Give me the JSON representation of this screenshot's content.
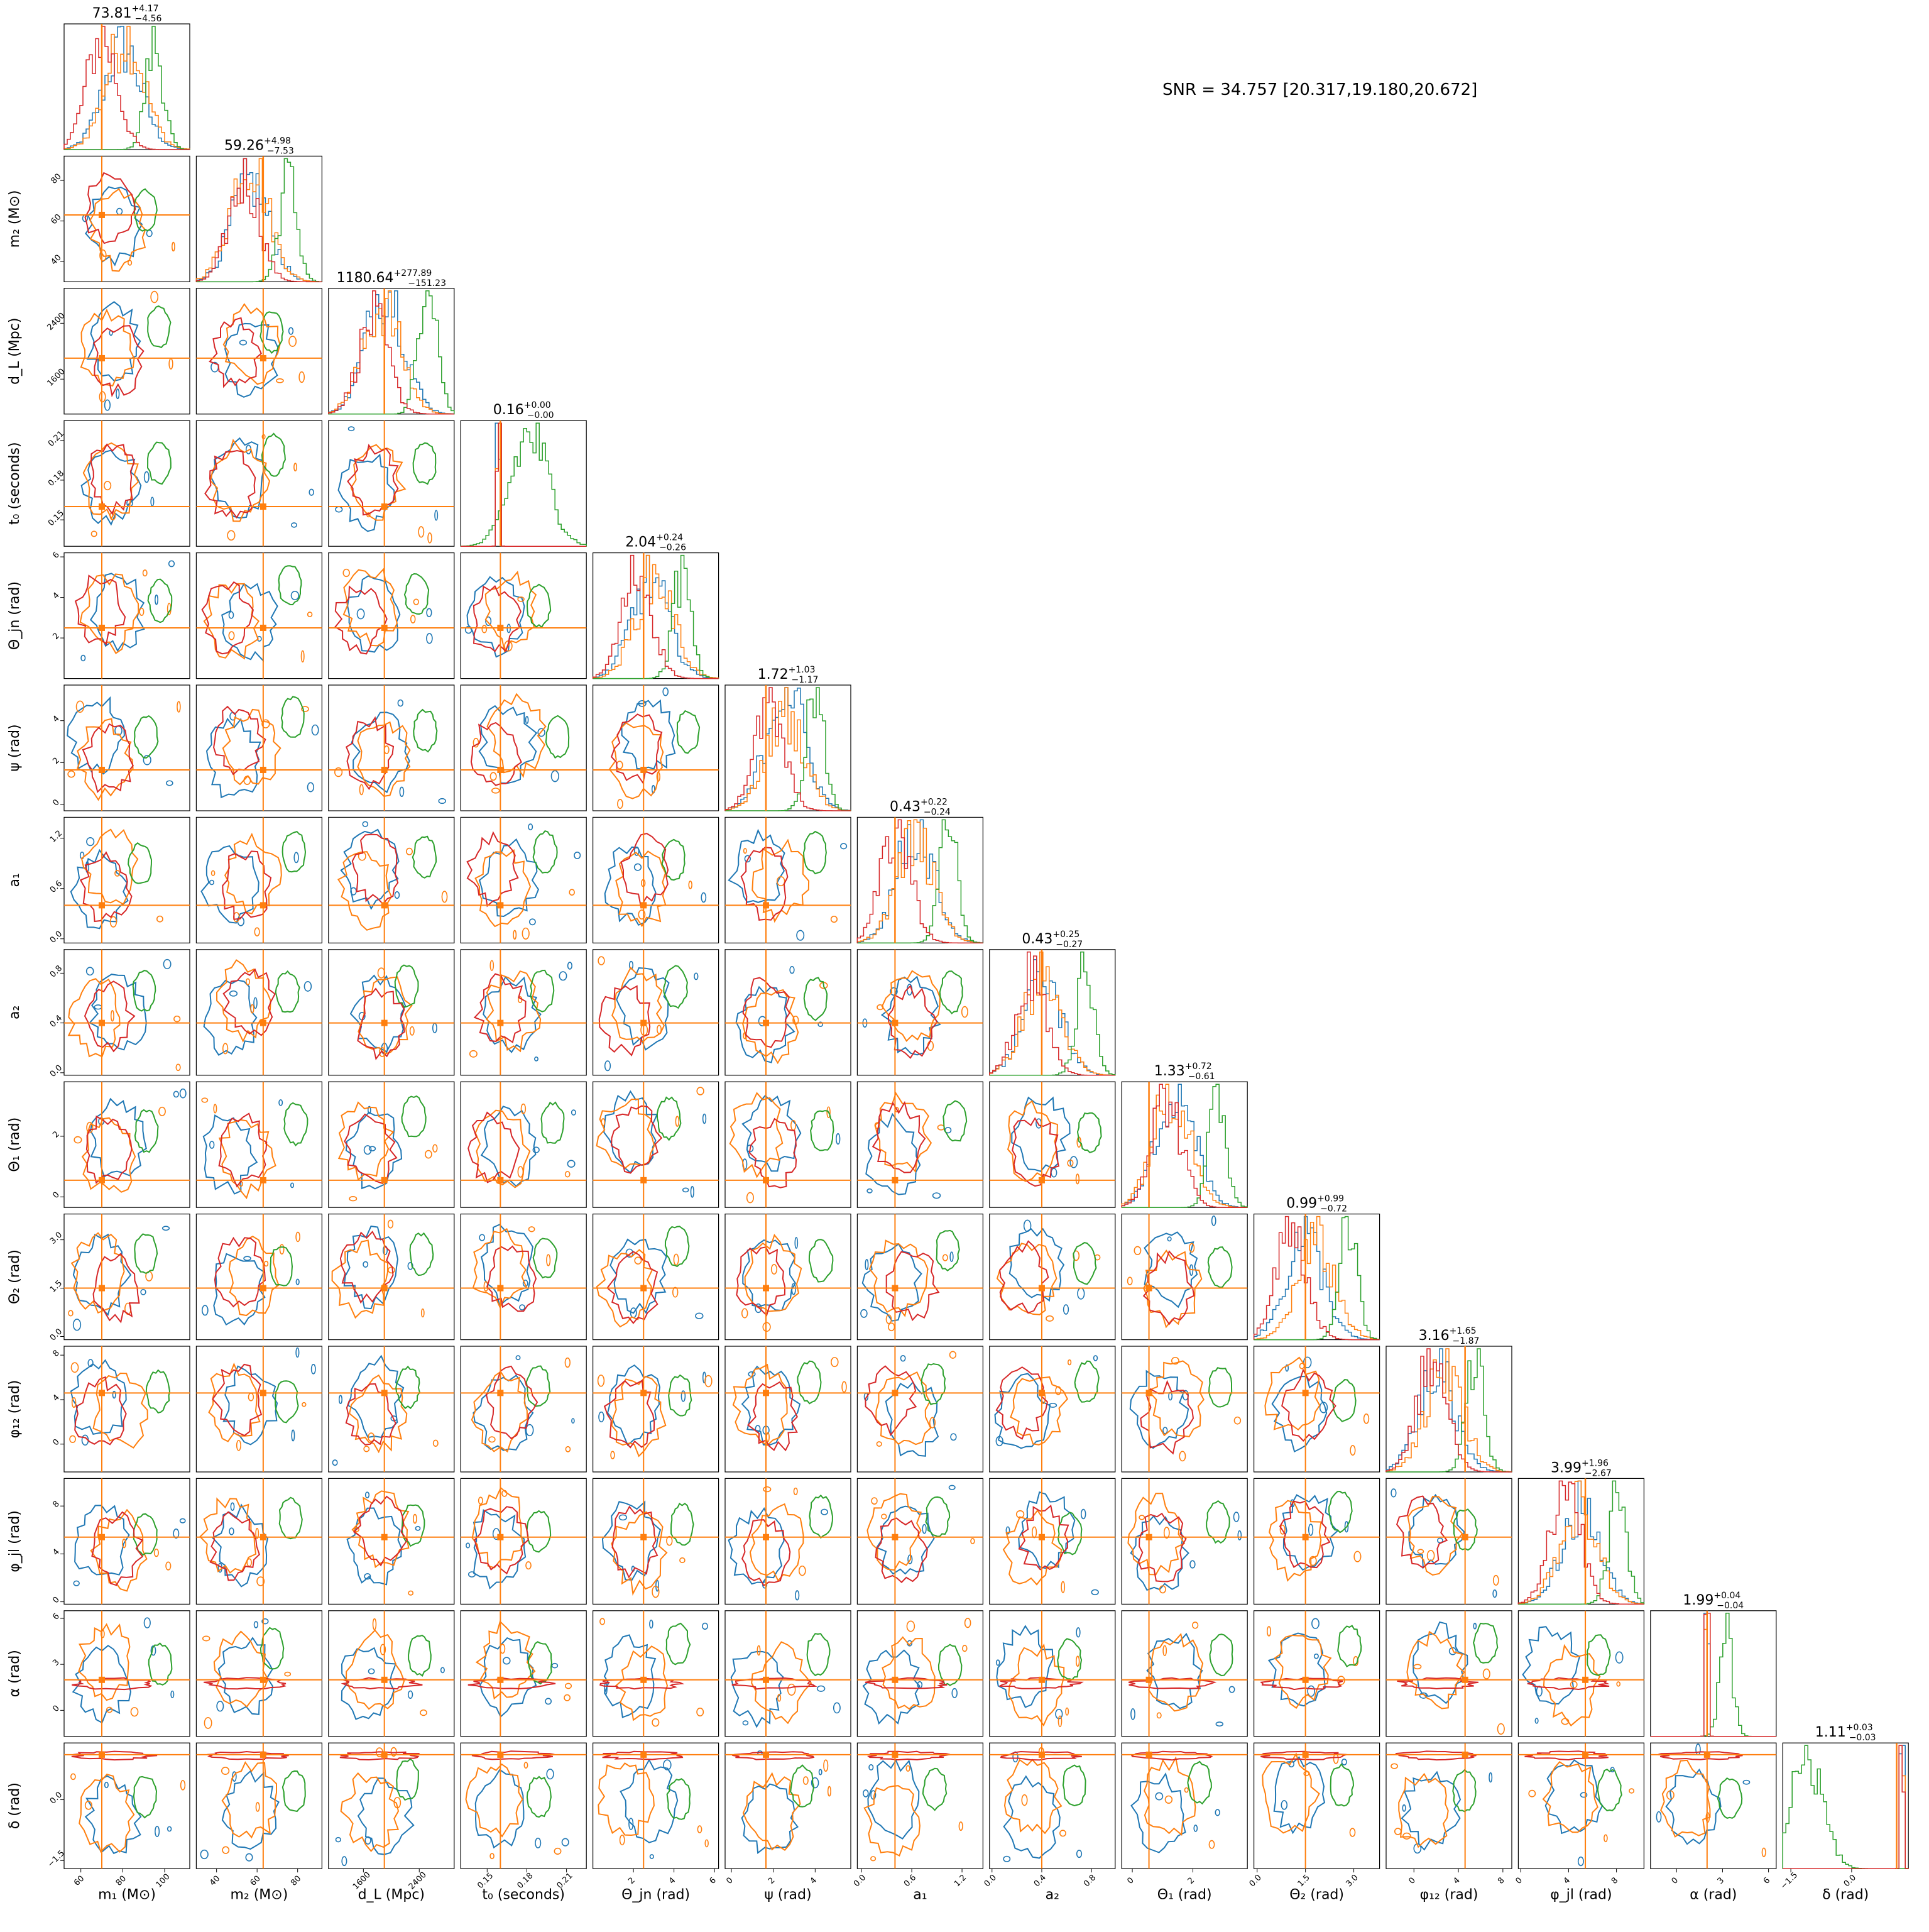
{
  "figure": {
    "snr_label": "SNR = 34.757 [20.317,19.180,20.672]"
  },
  "colors": {
    "blue": "#1f77b4",
    "orange": "#ff7f0e",
    "green": "#2ca02c",
    "red": "#d62728",
    "truth": "#ff7f0e"
  },
  "chart_data": {
    "type": "corner",
    "series": [
      {
        "name": "",
        "color": "#1f77b4"
      },
      {
        "name": "",
        "color": "#ff7f0e"
      },
      {
        "name": "",
        "color": "#2ca02c"
      },
      {
        "name": "",
        "color": "#d62728"
      }
    ],
    "parameters": [
      {
        "key": "m1",
        "label": "m₁ (M⊙)",
        "title": "73.81 +4.17 −4.56",
        "median": 73.81,
        "plus": 4.17,
        "minus": 4.56,
        "range": [
          52,
          112
        ],
        "ticks": [
          60,
          80,
          100
        ],
        "tick_labels": [
          "60",
          "80",
          "100"
        ],
        "truth": 70
      },
      {
        "key": "m2",
        "label": "m₂ (M⊙)",
        "title": "59.26 +4.98 −7.53",
        "median": 59.26,
        "plus": 4.98,
        "minus": 7.53,
        "range": [
          30,
          92
        ],
        "ticks": [
          40,
          60,
          80
        ],
        "tick_labels": [
          "40",
          "60",
          "80"
        ],
        "truth": 63
      },
      {
        "key": "dL",
        "label": "d_L (Mpc)",
        "title": "1180.64 +277.89 −151.23",
        "median": 1180.64,
        "plus": 277.89,
        "minus": 151.23,
        "range": [
          1100,
          2900
        ],
        "ticks": [
          1600,
          2400
        ],
        "tick_labels": [
          "1600",
          "2400"
        ],
        "truth": 1900
      },
      {
        "key": "t0",
        "label": "t₀ (seconds)",
        "title": "0.16 +0.00 −0.00",
        "median": 0.16,
        "plus": 0.0,
        "minus": 0.0,
        "range": [
          0.13,
          0.225
        ],
        "ticks": [
          0.15,
          0.18,
          0.21
        ],
        "tick_labels": [
          "0.15",
          "0.18",
          "0.21"
        ],
        "truth": 0.16
      },
      {
        "key": "thetajn",
        "label": "Θ_jn (rad)",
        "title": "2.04 +0.24 −0.26",
        "median": 2.04,
        "plus": 0.24,
        "minus": 0.26,
        "range": [
          0,
          6.2
        ],
        "ticks": [
          2,
          4,
          6
        ],
        "tick_labels": [
          "2",
          "4",
          "6"
        ],
        "truth": 2.5
      },
      {
        "key": "psi",
        "label": "ψ (rad)",
        "title": "1.72 +1.03 −1.17",
        "median": 1.72,
        "plus": 1.03,
        "minus": 1.17,
        "range": [
          -0.3,
          5.7
        ],
        "ticks": [
          0,
          2,
          4
        ],
        "tick_labels": [
          "0",
          "2",
          "4"
        ],
        "truth": 1.65
      },
      {
        "key": "a1",
        "label": "a₁",
        "title": "0.43 +0.22 −0.24",
        "median": 0.43,
        "plus": 0.22,
        "minus": 0.24,
        "range": [
          -0.05,
          1.45
        ],
        "ticks": [
          0.0,
          0.6,
          1.2
        ],
        "tick_labels": [
          "0.0",
          "0.6",
          "1.2"
        ],
        "truth": 0.4
      },
      {
        "key": "a2",
        "label": "a₂",
        "title": "0.43 +0.25 −0.27",
        "median": 0.43,
        "plus": 0.25,
        "minus": 0.27,
        "range": [
          -0.02,
          0.99
        ],
        "ticks": [
          0.0,
          0.4,
          0.8
        ],
        "tick_labels": [
          "0.0",
          "0.4",
          "0.8"
        ],
        "truth": 0.4
      },
      {
        "key": "theta1",
        "label": "Θ₁ (rad)",
        "title": "1.33 +0.72 −0.61",
        "median": 1.33,
        "plus": 0.72,
        "minus": 0.61,
        "range": [
          -0.35,
          3.8
        ],
        "ticks": [
          0,
          2
        ],
        "tick_labels": [
          "0",
          "2"
        ],
        "truth": 0.55
      },
      {
        "key": "theta2",
        "label": "Θ₂ (rad)",
        "title": "0.99 +0.99 −0.72",
        "median": 0.99,
        "plus": 0.99,
        "minus": 0.72,
        "range": [
          -0.1,
          3.8
        ],
        "ticks": [
          0.0,
          1.5,
          3.0
        ],
        "tick_labels": [
          "0.0",
          "1.5",
          "3.0"
        ],
        "truth": 1.5
      },
      {
        "key": "phi12",
        "label": "φ₁₂ (rad)",
        "title": "3.16 +1.65 −1.87",
        "median": 3.16,
        "plus": 1.65,
        "minus": 1.87,
        "range": [
          -2.5,
          8.8
        ],
        "ticks": [
          0,
          4,
          8
        ],
        "tick_labels": [
          "0",
          "4",
          "8"
        ],
        "truth": 4.6
      },
      {
        "key": "phijl",
        "label": "φ_jl (rad)",
        "title": "3.99 +1.96 −2.67",
        "median": 3.99,
        "plus": 1.96,
        "minus": 2.67,
        "range": [
          -0.2,
          10.3
        ],
        "ticks": [
          0,
          4,
          8
        ],
        "tick_labels": [
          "0",
          "4",
          "8"
        ],
        "truth": 5.4
      },
      {
        "key": "alpha",
        "label": "α (rad)",
        "title": "1.99 +0.04 −0.04",
        "median": 1.99,
        "plus": 0.04,
        "minus": 0.04,
        "range": [
          -1.7,
          6.5
        ],
        "ticks": [
          0,
          3,
          6
        ],
        "tick_labels": [
          "0",
          "3",
          "6"
        ],
        "truth": 1.99
      },
      {
        "key": "delta",
        "label": "δ (rad)",
        "title": "1.11 +0.03 −0.03",
        "median": 1.11,
        "plus": 0.03,
        "minus": 0.03,
        "range": [
          -1.7,
          1.4
        ],
        "ticks": [
          -1.5,
          0.0
        ],
        "tick_labels": [
          "−1.5",
          "0.0"
        ],
        "truth": 1.11
      }
    ]
  }
}
